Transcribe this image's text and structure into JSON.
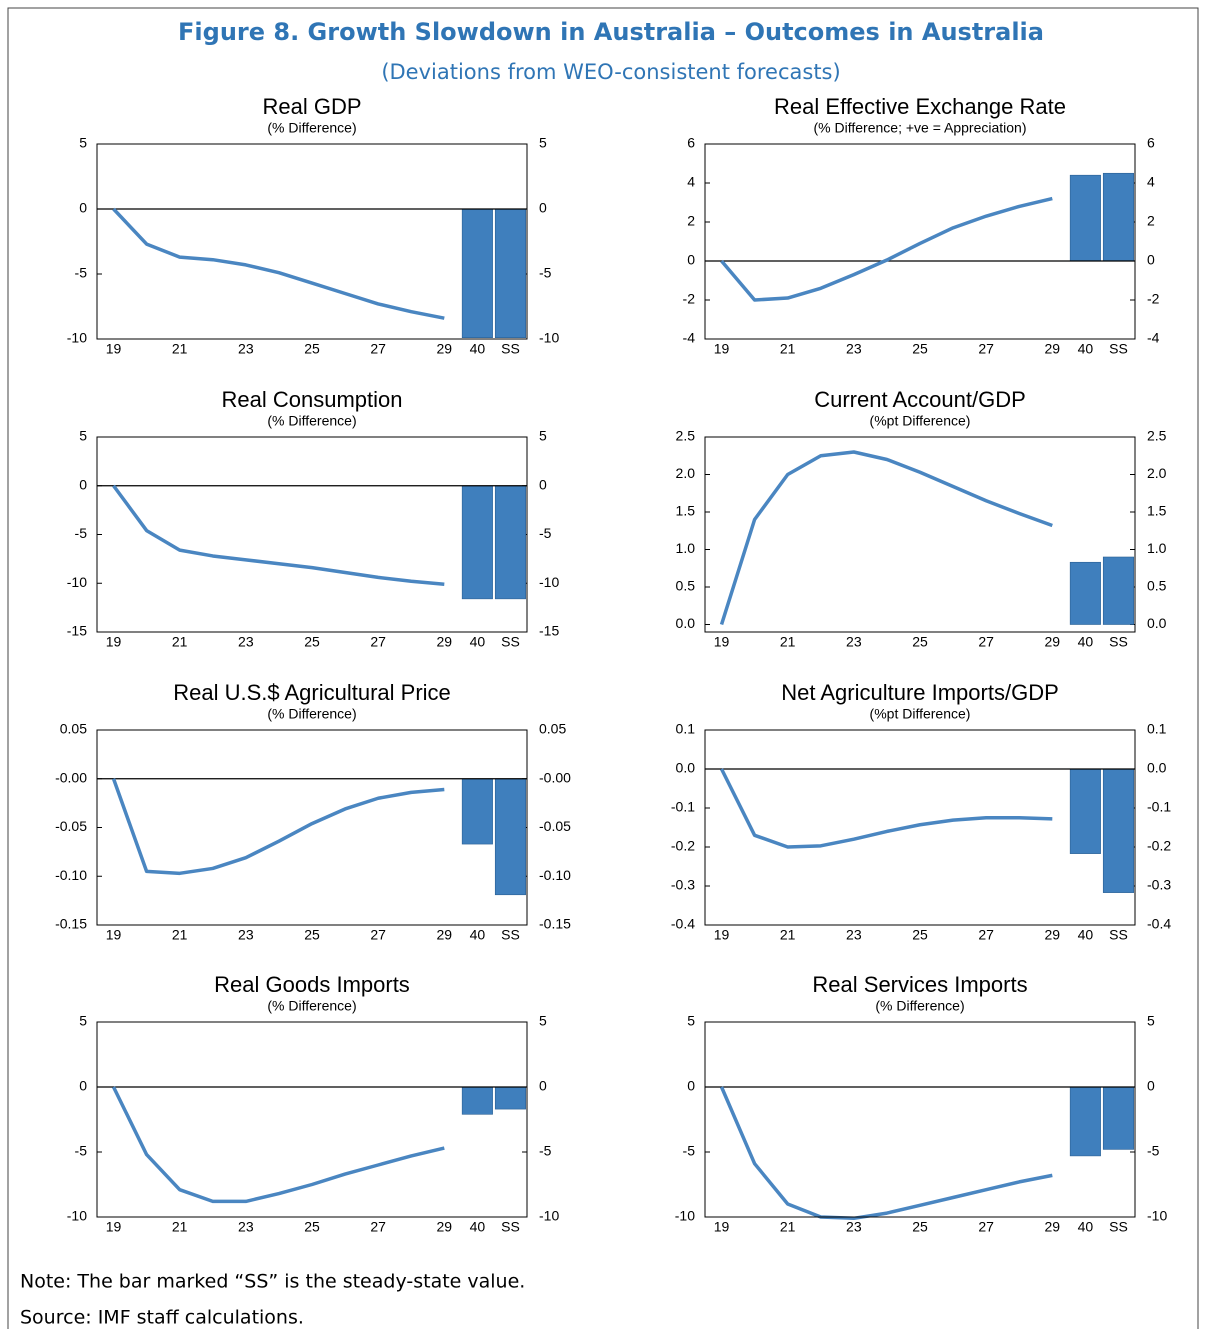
{
  "header": {
    "title": "Figure 8. Growth Slowdown in Australia – Outcomes in Australia",
    "subtitle": "(Deviations from WEO-consistent forecasts)"
  },
  "footer": {
    "note": "Note: The bar marked “SS” is the steady-state value.",
    "source": "Source: IMF staff calculations."
  },
  "chart_data": [
    {
      "type": "combo",
      "title": "Real GDP",
      "subtitle": "(% Difference)",
      "categories": [
        "19",
        null,
        "21",
        null,
        "23",
        null,
        "25",
        null,
        "27",
        null,
        "29",
        "40",
        "SS"
      ],
      "series": [
        {
          "type": "line",
          "color": "#4a86c1",
          "values": [
            0,
            -2.7,
            -3.7,
            -3.9,
            -4.3,
            -4.9,
            -5.7,
            -6.5,
            -7.3,
            -7.9,
            -8.4,
            null,
            null
          ]
        },
        {
          "type": "bar",
          "color": "#3f7fbd",
          "values": [
            null,
            null,
            null,
            null,
            null,
            null,
            null,
            null,
            null,
            null,
            null,
            -9.9,
            -9.9
          ]
        }
      ],
      "ylim": [
        -10,
        5
      ],
      "yticks": [
        -10,
        -5,
        0,
        5
      ],
      "zero_line": true,
      "right_axis": true
    },
    {
      "type": "combo",
      "title": "Real Effective Exchange Rate",
      "subtitle": "(% Difference; +ve = Appreciation)",
      "categories": [
        "19",
        null,
        "21",
        null,
        "23",
        null,
        "25",
        null,
        "27",
        null,
        "29",
        "40",
        "SS"
      ],
      "series": [
        {
          "type": "line",
          "color": "#4a86c1",
          "values": [
            0,
            -2.0,
            -1.9,
            -1.4,
            -0.7,
            0.05,
            0.9,
            1.7,
            2.3,
            2.8,
            3.2,
            null,
            null
          ]
        },
        {
          "type": "bar",
          "color": "#3f7fbd",
          "values": [
            null,
            null,
            null,
            null,
            null,
            null,
            null,
            null,
            null,
            null,
            null,
            4.4,
            4.5
          ]
        }
      ],
      "ylim": [
        -4,
        6
      ],
      "yticks": [
        -4,
        -2,
        0,
        2,
        4,
        6
      ],
      "zero_line": true,
      "right_axis": true
    },
    {
      "type": "combo",
      "title": "Real Consumption",
      "subtitle": "(% Difference)",
      "categories": [
        "19",
        null,
        "21",
        null,
        "23",
        null,
        "25",
        null,
        "27",
        null,
        "29",
        "40",
        "SS"
      ],
      "series": [
        {
          "type": "line",
          "color": "#4a86c1",
          "values": [
            0,
            -4.6,
            -6.6,
            -7.2,
            -7.6,
            -8.0,
            -8.4,
            -8.9,
            -9.4,
            -9.8,
            -10.1,
            null,
            null
          ]
        },
        {
          "type": "bar",
          "color": "#3f7fbd",
          "values": [
            null,
            null,
            null,
            null,
            null,
            null,
            null,
            null,
            null,
            null,
            null,
            -11.6,
            -11.6
          ]
        }
      ],
      "ylim": [
        -15,
        5
      ],
      "yticks": [
        -15,
        -10,
        -5,
        0,
        5
      ],
      "zero_line": true,
      "right_axis": true
    },
    {
      "type": "combo",
      "title": "Current Account/GDP",
      "subtitle": "(%pt Difference)",
      "categories": [
        "19",
        null,
        "21",
        null,
        "23",
        null,
        "25",
        null,
        "27",
        null,
        "29",
        "40",
        "SS"
      ],
      "series": [
        {
          "type": "line",
          "color": "#4a86c1",
          "values": [
            0,
            1.4,
            2.0,
            2.25,
            2.3,
            2.2,
            2.03,
            1.84,
            1.65,
            1.48,
            1.32,
            null,
            null
          ]
        },
        {
          "type": "bar",
          "color": "#3f7fbd",
          "values": [
            null,
            null,
            null,
            null,
            null,
            null,
            null,
            null,
            null,
            null,
            null,
            0.83,
            0.9
          ]
        }
      ],
      "ylim": [
        -0.1,
        2.5
      ],
      "yticks": [
        {
          "value": 0,
          "label": "0.0"
        },
        0.5,
        {
          "value": 1,
          "label": "1.0"
        },
        1.5,
        {
          "value": 2,
          "label": "2.0"
        },
        2.5
      ],
      "zero_line": false,
      "right_axis": true
    },
    {
      "type": "combo",
      "title": "Real U.S.$ Agricultural Price",
      "subtitle": "(% Difference)",
      "categories": [
        "19",
        null,
        "21",
        null,
        "23",
        null,
        "25",
        null,
        "27",
        null,
        "29",
        "40",
        "SS"
      ],
      "series": [
        {
          "type": "line",
          "color": "#4a86c1",
          "values": [
            0,
            -0.095,
            -0.097,
            -0.092,
            -0.081,
            -0.064,
            -0.046,
            -0.031,
            -0.02,
            -0.014,
            -0.011,
            null,
            null
          ]
        },
        {
          "type": "bar",
          "color": "#3f7fbd",
          "values": [
            null,
            null,
            null,
            null,
            null,
            null,
            null,
            null,
            null,
            null,
            null,
            -0.067,
            -0.119
          ]
        }
      ],
      "ylim": [
        -0.15,
        0.05
      ],
      "yticks": [
        -0.15,
        {
          "value": -0.1,
          "label": "-0.10"
        },
        -0.05,
        {
          "value": 0,
          "label": "-0.00"
        },
        0.05
      ],
      "zero_line": true,
      "right_axis": true
    },
    {
      "type": "combo",
      "title": "Net Agriculture Imports/GDP",
      "subtitle": "(%pt Difference)",
      "categories": [
        "19",
        null,
        "21",
        null,
        "23",
        null,
        "25",
        null,
        "27",
        null,
        "29",
        "40",
        "SS"
      ],
      "series": [
        {
          "type": "line",
          "color": "#4a86c1",
          "values": [
            0,
            -0.17,
            -0.2,
            -0.197,
            -0.18,
            -0.16,
            -0.143,
            -0.131,
            -0.125,
            -0.125,
            -0.128,
            null,
            null
          ]
        },
        {
          "type": "bar",
          "color": "#3f7fbd",
          "values": [
            null,
            null,
            null,
            null,
            null,
            null,
            null,
            null,
            null,
            null,
            null,
            -0.217,
            -0.317
          ]
        }
      ],
      "ylim": [
        -0.4,
        0.1
      ],
      "yticks": [
        -0.4,
        -0.3,
        -0.2,
        -0.1,
        {
          "value": 0,
          "label": "0.0"
        },
        0.1
      ],
      "zero_line": true,
      "right_axis": true
    },
    {
      "type": "combo",
      "title": "Real Goods Imports",
      "subtitle": "(% Difference)",
      "categories": [
        "19",
        null,
        "21",
        null,
        "23",
        null,
        "25",
        null,
        "27",
        null,
        "29",
        "40",
        "SS"
      ],
      "series": [
        {
          "type": "line",
          "color": "#4a86c1",
          "values": [
            0,
            -5.2,
            -7.9,
            -8.8,
            -8.8,
            -8.2,
            -7.5,
            -6.7,
            -6.0,
            -5.3,
            -4.7,
            null,
            null
          ]
        },
        {
          "type": "bar",
          "color": "#3f7fbd",
          "values": [
            null,
            null,
            null,
            null,
            null,
            null,
            null,
            null,
            null,
            null,
            null,
            -2.1,
            -1.7
          ]
        }
      ],
      "ylim": [
        -10,
        5
      ],
      "yticks": [
        -10,
        -5,
        0,
        5
      ],
      "zero_line": true,
      "right_axis": true
    },
    {
      "type": "combo",
      "title": "Real Services Imports",
      "subtitle": "(% Difference)",
      "categories": [
        "19",
        null,
        "21",
        null,
        "23",
        null,
        "25",
        null,
        "27",
        null,
        "29",
        "40",
        "SS"
      ],
      "series": [
        {
          "type": "line",
          "color": "#4a86c1",
          "values": [
            0,
            -5.9,
            -9.0,
            -10.0,
            -10.1,
            -9.7,
            -9.1,
            -8.5,
            -7.9,
            -7.3,
            -6.8,
            null,
            null
          ]
        },
        {
          "type": "bar",
          "color": "#3f7fbd",
          "values": [
            null,
            null,
            null,
            null,
            null,
            null,
            null,
            null,
            null,
            null,
            null,
            -5.3,
            -4.8
          ]
        }
      ],
      "ylim": [
        -10,
        5
      ],
      "yticks": [
        -10,
        -5,
        0,
        5
      ],
      "zero_line": true,
      "right_axis": true
    }
  ]
}
